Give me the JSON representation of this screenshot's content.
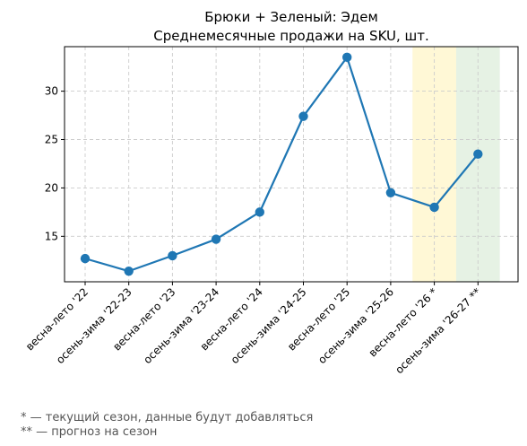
{
  "chart_data": {
    "type": "line",
    "title": "Брюки + Зеленый: Эдем",
    "subtitle": "Среднемесячные продажи на SKU, шт.",
    "xlabel": "",
    "ylabel": "",
    "categories": [
      "весна-лето '22",
      "осень-зима '22-23",
      "весна-лето '23",
      "осень-зима '23-24",
      "весна-лето '24",
      "осень-зима '24-25",
      "весна-лето '25",
      "осень-зима '25-26",
      "весна-лето '26 *",
      "осень-зима '26-27 **"
    ],
    "series": [
      {
        "values": [
          12.7,
          11.4,
          13.0,
          14.7,
          17.5,
          27.4,
          33.5,
          19.5,
          18.0,
          23.5
        ],
        "color": "#1f77b4"
      }
    ],
    "yticks": [
      15,
      20,
      25,
      30
    ],
    "ylim": [
      10.3,
      34.6
    ],
    "grid": true,
    "highlights": [
      {
        "category": "весна-лето '26 *",
        "color": "#fff8d6",
        "meaning": "current season"
      },
      {
        "category": "осень-зима '26-27 **",
        "color": "#e6f2e4",
        "meaning": "forecast"
      }
    ]
  },
  "notes": [
    "* — текущий сезон, данные будут добавляться",
    "** — прогноз на сезон"
  ]
}
